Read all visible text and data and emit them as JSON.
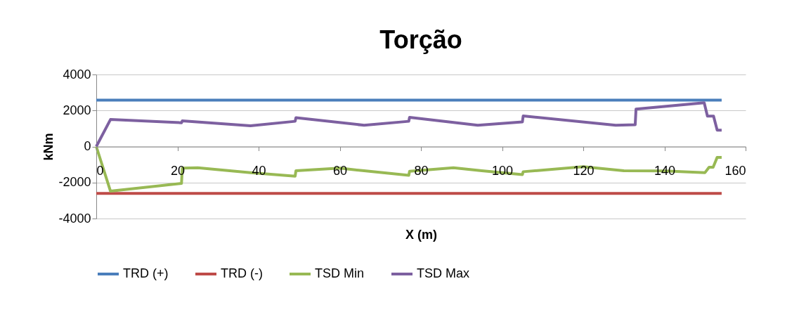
{
  "chart_data": {
    "type": "line",
    "title": "Torção",
    "xlabel": "X (m)",
    "ylabel": "kNm",
    "xlim": [
      0,
      160
    ],
    "xticks": [
      0,
      20,
      40,
      60,
      80,
      100,
      120,
      140,
      160
    ],
    "ylim": [
      -4000,
      4000
    ],
    "yticks": [
      {
        "value": -4000,
        "label": "-4000"
      },
      {
        "value": -2000,
        "label": "-2000"
      },
      0,
      {
        "value": 2000,
        "label": "2000"
      },
      {
        "value": 4000,
        "label": "4000"
      }
    ],
    "grid": "y",
    "legend": "bottom",
    "marker": "none",
    "line_style": "solid",
    "series": [
      {
        "name": "TRD (+)",
        "color": "#4a7ebb",
        "x": [
          0,
          154.1
        ],
        "values": [
          2580,
          2580
        ]
      },
      {
        "name": "TRD (-)",
        "color": "#be4b48",
        "x": [
          0,
          154.1
        ],
        "values": [
          -2600,
          -2600
        ]
      },
      {
        "name": "TSD Min",
        "color": "#98b954",
        "x": [
          0,
          3.5,
          21,
          21.2,
          25,
          38,
          49,
          49.2,
          60,
          66,
          77,
          77.2,
          88,
          95,
          105,
          105.2,
          120,
          130,
          140,
          150,
          151,
          152,
          153,
          154.1
        ],
        "values": [
          0,
          -2480,
          -2050,
          -1200,
          -1180,
          -1450,
          -1650,
          -1350,
          -1200,
          -1350,
          -1600,
          -1380,
          -1180,
          -1350,
          -1560,
          -1400,
          -1120,
          -1350,
          -1360,
          -1450,
          -1150,
          -1150,
          -600,
          -600
        ]
      },
      {
        "name": "TSD Max",
        "color": "#7d60a0",
        "x": [
          0,
          3.5,
          21,
          21.2,
          38,
          49,
          49.2,
          66,
          77,
          77.2,
          94,
          105,
          105.2,
          128,
          132.8,
          133,
          149.8,
          150.6,
          152.1,
          153,
          154.1
        ],
        "values": [
          0,
          1500,
          1320,
          1420,
          1150,
          1400,
          1600,
          1180,
          1400,
          1620,
          1180,
          1370,
          1700,
          1180,
          1210,
          2080,
          2430,
          1690,
          1690,
          910,
          910
        ]
      }
    ]
  }
}
